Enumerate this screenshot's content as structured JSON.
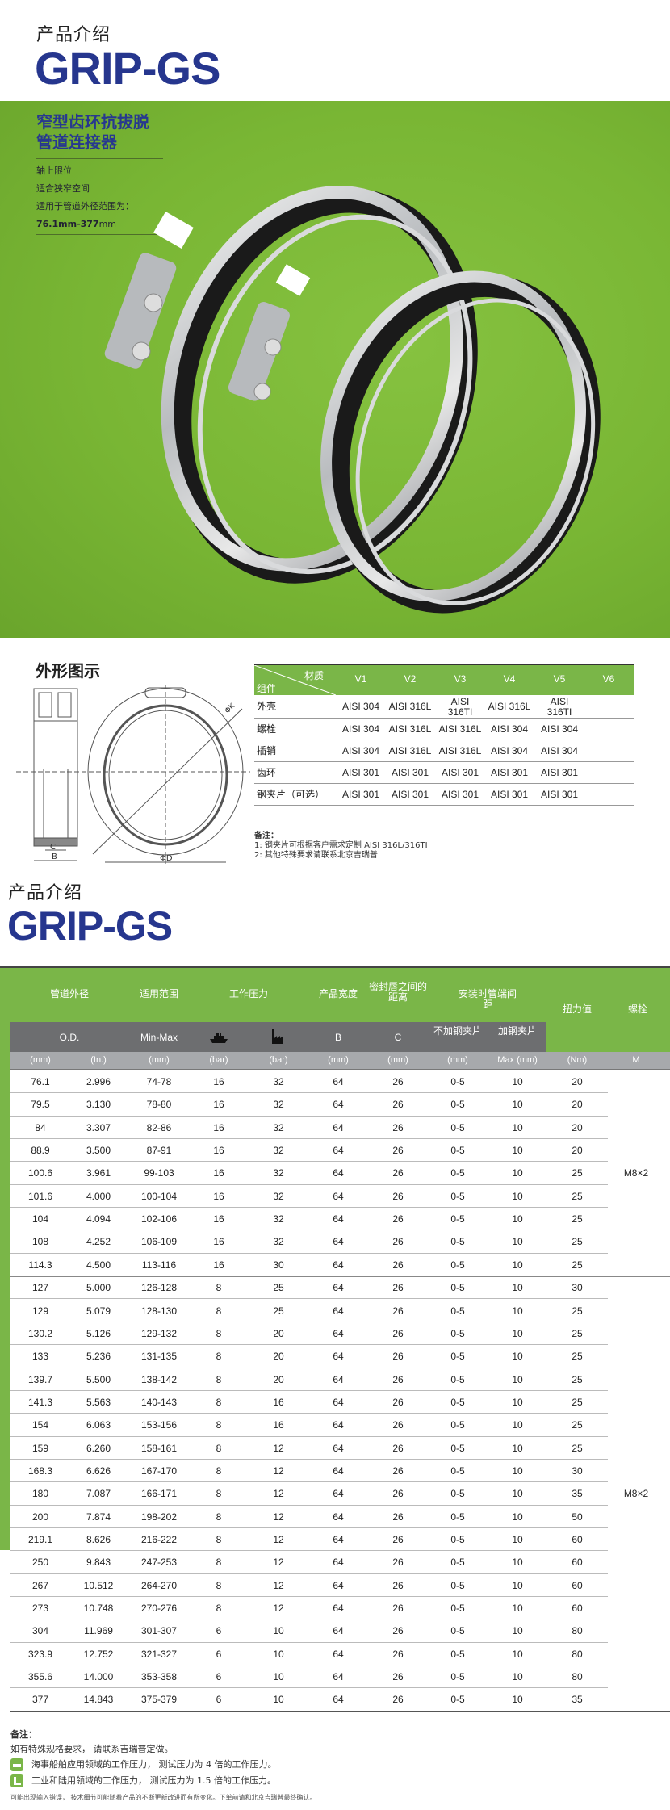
{
  "header": {
    "intro": "产品介绍",
    "brand": "GRIP-GS"
  },
  "hero": {
    "title_line1": "窄型齿环抗拔脱",
    "title_line2": "管道连接器",
    "features": [
      "轴上限位",
      "适合狭窄空间",
      "适用于管道外径范围为："
    ],
    "range_bold": "76.1mm-377",
    "range_unit": "mm",
    "colors": {
      "background": "#7cb83a",
      "title": "#27388f"
    }
  },
  "outline": {
    "title": "外形图示",
    "drawing_labels": {
      "c": "C",
      "b": "B",
      "od": "ΦD",
      "dk": "ΦK"
    },
    "material_table": {
      "corner_top": "材质",
      "corner_bottom": "组件",
      "columns": [
        "V1",
        "V2",
        "V3",
        "V4",
        "V5",
        "V6"
      ],
      "rows": [
        {
          "label": "外壳",
          "values": [
            "AISI 304",
            "AISI 316L",
            "AISI 316TI",
            "AISI 316L",
            "AISI 316TI",
            ""
          ]
        },
        {
          "label": "螺栓",
          "values": [
            "AISI 304",
            "AISI 316L",
            "AISI 316L",
            "AISI 304",
            "AISI 304",
            ""
          ]
        },
        {
          "label": "插销",
          "values": [
            "AISI 304",
            "AISI 316L",
            "AISI 316L",
            "AISI 304",
            "AISI 304",
            ""
          ]
        },
        {
          "label": "齿环",
          "values": [
            "AISI 301",
            "AISI 301",
            "AISI 301",
            "AISI 301",
            "AISI 301",
            ""
          ]
        },
        {
          "label": "钢夹片（可选）",
          "values": [
            "AISI 301",
            "AISI 301",
            "AISI 301",
            "AISI 301",
            "AISI 301",
            ""
          ]
        }
      ]
    },
    "notes_title": "备注：",
    "notes": [
      "1:  钢夹片可根据客户需求定制 AISI  316L/316TI",
      "2:  其他特殊要求请联系北京吉瑞普"
    ]
  },
  "specs": {
    "intro": "产品介绍",
    "brand": "GRIP-GS",
    "group_headers": [
      "管道外径",
      "适用范围",
      "工作压力",
      "产品宽度",
      "密封唇之间的距离",
      "安装时管端间距",
      "扭力值",
      "螺栓"
    ],
    "sub_headers": [
      "O.D.",
      "Min-Max",
      "ship-icon",
      "factory-icon",
      "B",
      "C",
      "不加钢夹片",
      "加钢夹片"
    ],
    "units": [
      "(mm)",
      "(In.)",
      "(mm)",
      "(bar)",
      "(bar)",
      "(mm)",
      "(mm)",
      "(mm)",
      "Max (mm)",
      "(Nm)",
      "M"
    ],
    "rows": [
      [
        "76.1",
        "2.996",
        "74-78",
        "16",
        "32",
        "64",
        "26",
        "0-5",
        "10",
        "20",
        ""
      ],
      [
        "79.5",
        "3.130",
        "78-80",
        "16",
        "32",
        "64",
        "26",
        "0-5",
        "10",
        "20",
        ""
      ],
      [
        "84",
        "3.307",
        "82-86",
        "16",
        "32",
        "64",
        "26",
        "0-5",
        "10",
        "20",
        ""
      ],
      [
        "88.9",
        "3.500",
        "87-91",
        "16",
        "32",
        "64",
        "26",
        "0-5",
        "10",
        "20",
        ""
      ],
      [
        "100.6",
        "3.961",
        "99-103",
        "16",
        "32",
        "64",
        "26",
        "0-5",
        "10",
        "25",
        "M8×2"
      ],
      [
        "101.6",
        "4.000",
        "100-104",
        "16",
        "32",
        "64",
        "26",
        "0-5",
        "10",
        "25",
        ""
      ],
      [
        "104",
        "4.094",
        "102-106",
        "16",
        "32",
        "64",
        "26",
        "0-5",
        "10",
        "25",
        ""
      ],
      [
        "108",
        "4.252",
        "106-109",
        "16",
        "32",
        "64",
        "26",
        "0-5",
        "10",
        "25",
        ""
      ],
      [
        "114.3",
        "4.500",
        "113-116",
        "16",
        "30",
        "64",
        "26",
        "0-5",
        "10",
        "25",
        ""
      ],
      [
        "127",
        "5.000",
        "126-128",
        "8",
        "25",
        "64",
        "26",
        "0-5",
        "10",
        "30",
        ""
      ],
      [
        "129",
        "5.079",
        "128-130",
        "8",
        "25",
        "64",
        "26",
        "0-5",
        "10",
        "25",
        ""
      ],
      [
        "130.2",
        "5.126",
        "129-132",
        "8",
        "20",
        "64",
        "26",
        "0-5",
        "10",
        "25",
        ""
      ],
      [
        "133",
        "5.236",
        "131-135",
        "8",
        "20",
        "64",
        "26",
        "0-5",
        "10",
        "25",
        ""
      ],
      [
        "139.7",
        "5.500",
        "138-142",
        "8",
        "20",
        "64",
        "26",
        "0-5",
        "10",
        "25",
        ""
      ],
      [
        "141.3",
        "5.563",
        "140-143",
        "8",
        "16",
        "64",
        "26",
        "0-5",
        "10",
        "25",
        ""
      ],
      [
        "154",
        "6.063",
        "153-156",
        "8",
        "16",
        "64",
        "26",
        "0-5",
        "10",
        "25",
        ""
      ],
      [
        "159",
        "6.260",
        "158-161",
        "8",
        "12",
        "64",
        "26",
        "0-5",
        "10",
        "25",
        ""
      ],
      [
        "168.3",
        "6.626",
        "167-170",
        "8",
        "12",
        "64",
        "26",
        "0-5",
        "10",
        "30",
        ""
      ],
      [
        "180",
        "7.087",
        "166-171",
        "8",
        "12",
        "64",
        "26",
        "0-5",
        "10",
        "35",
        "M8×2"
      ],
      [
        "200",
        "7.874",
        "198-202",
        "8",
        "12",
        "64",
        "26",
        "0-5",
        "10",
        "50",
        ""
      ],
      [
        "219.1",
        "8.626",
        "216-222",
        "8",
        "12",
        "64",
        "26",
        "0-5",
        "10",
        "60",
        ""
      ],
      [
        "250",
        "9.843",
        "247-253",
        "8",
        "12",
        "64",
        "26",
        "0-5",
        "10",
        "60",
        ""
      ],
      [
        "267",
        "10.512",
        "264-270",
        "8",
        "12",
        "64",
        "26",
        "0-5",
        "10",
        "60",
        ""
      ],
      [
        "273",
        "10.748",
        "270-276",
        "8",
        "12",
        "64",
        "26",
        "0-5",
        "10",
        "60",
        ""
      ],
      [
        "304",
        "11.969",
        "301-307",
        "6",
        "10",
        "64",
        "26",
        "0-5",
        "10",
        "80",
        ""
      ],
      [
        "323.9",
        "12.752",
        "321-327",
        "6",
        "10",
        "64",
        "26",
        "0-5",
        "10",
        "80",
        ""
      ],
      [
        "355.6",
        "14.000",
        "353-358",
        "6",
        "10",
        "64",
        "26",
        "0-5",
        "10",
        "80",
        ""
      ],
      [
        "377",
        "14.843",
        "375-379",
        "6",
        "10",
        "64",
        "26",
        "0-5",
        "10",
        "35",
        ""
      ]
    ],
    "notes_title": "备注：",
    "note": "如有特殊规格要求，  请联系吉瑞普定做。",
    "legend": [
      {
        "icon": "ship-icon",
        "text": "海事船舶应用领域的工作压力，  测试压力为 4 倍的工作压力。"
      },
      {
        "icon": "factory-icon",
        "text": "工业和陆用领域的工作压力，  测试压力为 1.5 倍的工作压力。"
      }
    ],
    "disclaimer": "可能出现输入错误，  技术细节可能随着产品的不断更新改进而有所变化。下单前请和北京吉瑞普最终确认。",
    "colors": {
      "header_green": "#7ab648",
      "subheader_grey": "#6d6e70",
      "unit_grey": "#a7a9ac"
    }
  }
}
